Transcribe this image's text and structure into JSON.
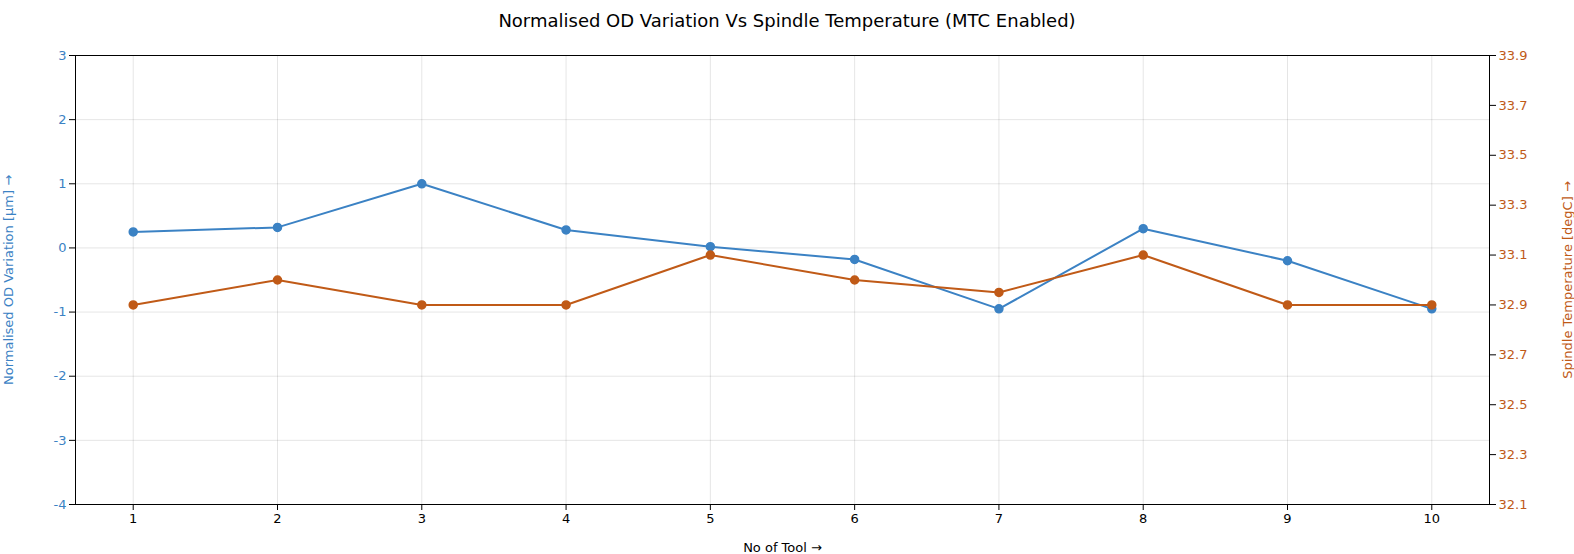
{
  "chart_data": {
    "type": "line",
    "title": "Normalised OD Variation Vs Spindle Temperature (MTC Enabled)",
    "xlabel": "No of Tool",
    "ylabel": "Normalised OD Variation [µm]",
    "y2label": "Spindle Temperature [degC]",
    "x": [
      1,
      2,
      3,
      4,
      5,
      6,
      7,
      8,
      9,
      10
    ],
    "series": [
      {
        "color": "#3b82c4",
        "marker": "circle",
        "values": [
          0.25,
          0.32,
          1.0,
          0.28,
          0.02,
          -0.18,
          -0.95,
          0.3,
          -0.2,
          -0.95
        ]
      },
      {
        "color": "#c05a17",
        "marker": "circle",
        "axis": "y2",
        "values": [
          32.9,
          33.0,
          32.9,
          32.9,
          33.1,
          33.0,
          32.95,
          33.1,
          32.9,
          32.9
        ]
      }
    ],
    "xlim": [
      0.6,
      10.4
    ],
    "xticks": [
      1,
      2,
      3,
      4,
      5,
      6,
      7,
      8,
      9,
      10
    ],
    "ylim": [
      -4,
      3
    ],
    "yticks": [
      -4,
      -3,
      -2,
      -1,
      0,
      1,
      2,
      3
    ],
    "y2lim": [
      32.1,
      33.9
    ],
    "y2ticks": [
      32.1,
      32.3,
      32.5,
      32.7,
      32.9,
      33.1,
      33.3,
      33.5,
      33.7,
      33.9
    ],
    "grid": true
  }
}
